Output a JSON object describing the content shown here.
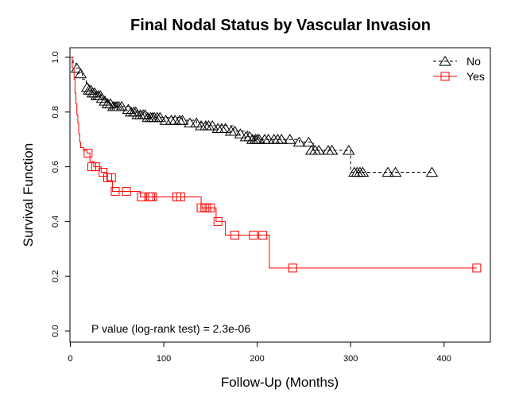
{
  "chart_data": {
    "type": "line",
    "subtype": "kaplan-meier",
    "title": "Final Nodal Status by Vascular Invasion",
    "xlabel": "Follow-Up (Months)",
    "ylabel": "Survival Function",
    "xlim": [
      0,
      450
    ],
    "ylim": [
      0,
      1
    ],
    "x_ticks": [
      "0",
      "100",
      "200",
      "300",
      "400"
    ],
    "y_ticks": [
      "0.0",
      "0.2",
      "0.4",
      "0.6",
      "0.8",
      "1.0"
    ],
    "grid": false,
    "legend_position": "top-right",
    "annotation": "P value (log-rank test) = 2.3e-06",
    "series": [
      {
        "name": "No",
        "color": "#000000",
        "line_style": "dashed",
        "marker": "triangle",
        "steps": [
          [
            0,
            1.0
          ],
          [
            3,
            0.98
          ],
          [
            6,
            0.96
          ],
          [
            9,
            0.94
          ],
          [
            13,
            0.92
          ],
          [
            17,
            0.9
          ],
          [
            20,
            0.88
          ],
          [
            24,
            0.87
          ],
          [
            30,
            0.86
          ],
          [
            36,
            0.84
          ],
          [
            42,
            0.83
          ],
          [
            50,
            0.82
          ],
          [
            65,
            0.8
          ],
          [
            78,
            0.79
          ],
          [
            85,
            0.78
          ],
          [
            120,
            0.77
          ],
          [
            135,
            0.76
          ],
          [
            145,
            0.75
          ],
          [
            175,
            0.73
          ],
          [
            190,
            0.71
          ],
          [
            200,
            0.7
          ],
          [
            245,
            0.69
          ],
          [
            260,
            0.66
          ],
          [
            300,
            0.66
          ],
          [
            300,
            0.58
          ],
          [
            387,
            0.58
          ]
        ],
        "censored": [
          [
            7,
            0.96
          ],
          [
            11,
            0.94
          ],
          [
            18,
            0.89
          ],
          [
            20,
            0.88
          ],
          [
            22,
            0.88
          ],
          [
            24,
            0.87
          ],
          [
            26,
            0.87
          ],
          [
            28,
            0.86
          ],
          [
            30,
            0.86
          ],
          [
            32,
            0.86
          ],
          [
            34,
            0.85
          ],
          [
            37,
            0.84
          ],
          [
            40,
            0.83
          ],
          [
            43,
            0.83
          ],
          [
            46,
            0.82
          ],
          [
            48,
            0.82
          ],
          [
            50,
            0.82
          ],
          [
            52,
            0.82
          ],
          [
            55,
            0.82
          ],
          [
            62,
            0.81
          ],
          [
            65,
            0.8
          ],
          [
            68,
            0.8
          ],
          [
            70,
            0.8
          ],
          [
            72,
            0.79
          ],
          [
            75,
            0.79
          ],
          [
            78,
            0.79
          ],
          [
            80,
            0.79
          ],
          [
            83,
            0.78
          ],
          [
            86,
            0.78
          ],
          [
            88,
            0.78
          ],
          [
            90,
            0.78
          ],
          [
            93,
            0.78
          ],
          [
            96,
            0.78
          ],
          [
            102,
            0.77
          ],
          [
            108,
            0.77
          ],
          [
            112,
            0.77
          ],
          [
            117,
            0.77
          ],
          [
            120,
            0.77
          ],
          [
            128,
            0.76
          ],
          [
            135,
            0.76
          ],
          [
            140,
            0.75
          ],
          [
            145,
            0.75
          ],
          [
            148,
            0.75
          ],
          [
            152,
            0.75
          ],
          [
            158,
            0.74
          ],
          [
            162,
            0.74
          ],
          [
            166,
            0.74
          ],
          [
            172,
            0.73
          ],
          [
            176,
            0.73
          ],
          [
            182,
            0.72
          ],
          [
            188,
            0.71
          ],
          [
            192,
            0.71
          ],
          [
            195,
            0.7
          ],
          [
            198,
            0.7
          ],
          [
            200,
            0.7
          ],
          [
            202,
            0.7
          ],
          [
            208,
            0.7
          ],
          [
            212,
            0.7
          ],
          [
            218,
            0.7
          ],
          [
            222,
            0.7
          ],
          [
            226,
            0.7
          ],
          [
            235,
            0.7
          ],
          [
            245,
            0.69
          ],
          [
            255,
            0.69
          ],
          [
            258,
            0.66
          ],
          [
            262,
            0.66
          ],
          [
            266,
            0.66
          ],
          [
            276,
            0.66
          ],
          [
            280,
            0.66
          ],
          [
            298,
            0.66
          ],
          [
            304,
            0.58
          ],
          [
            307,
            0.58
          ],
          [
            310,
            0.58
          ],
          [
            313,
            0.58
          ],
          [
            340,
            0.58
          ],
          [
            348,
            0.58
          ],
          [
            387,
            0.58
          ]
        ]
      },
      {
        "name": "Yes",
        "color": "#ff0000",
        "line_style": "solid",
        "marker": "square",
        "steps": [
          [
            0,
            1.0
          ],
          [
            2,
            0.96
          ],
          [
            4,
            0.92
          ],
          [
            5,
            0.87
          ],
          [
            6,
            0.83
          ],
          [
            7,
            0.79
          ],
          [
            8,
            0.76
          ],
          [
            9,
            0.72
          ],
          [
            10,
            0.69
          ],
          [
            11,
            0.67
          ],
          [
            14,
            0.66
          ],
          [
            18,
            0.65
          ],
          [
            21,
            0.62
          ],
          [
            25,
            0.6
          ],
          [
            33,
            0.58
          ],
          [
            39,
            0.55
          ],
          [
            45,
            0.51
          ],
          [
            75,
            0.49
          ],
          [
            140,
            0.45
          ],
          [
            156,
            0.4
          ],
          [
            166,
            0.35
          ],
          [
            213,
            0.23
          ],
          [
            435,
            0.23
          ]
        ],
        "censored": [
          [
            19,
            0.65
          ],
          [
            23,
            0.6
          ],
          [
            27,
            0.6
          ],
          [
            35,
            0.58
          ],
          [
            40,
            0.56
          ],
          [
            44,
            0.56
          ],
          [
            48,
            0.51
          ],
          [
            60,
            0.51
          ],
          [
            76,
            0.49
          ],
          [
            84,
            0.49
          ],
          [
            86,
            0.49
          ],
          [
            88,
            0.49
          ],
          [
            114,
            0.49
          ],
          [
            118,
            0.49
          ],
          [
            140,
            0.45
          ],
          [
            144,
            0.45
          ],
          [
            146,
            0.45
          ],
          [
            150,
            0.45
          ],
          [
            158,
            0.4
          ],
          [
            176,
            0.35
          ],
          [
            196,
            0.35
          ],
          [
            206,
            0.35
          ],
          [
            238,
            0.23
          ],
          [
            435,
            0.23
          ]
        ]
      }
    ]
  }
}
